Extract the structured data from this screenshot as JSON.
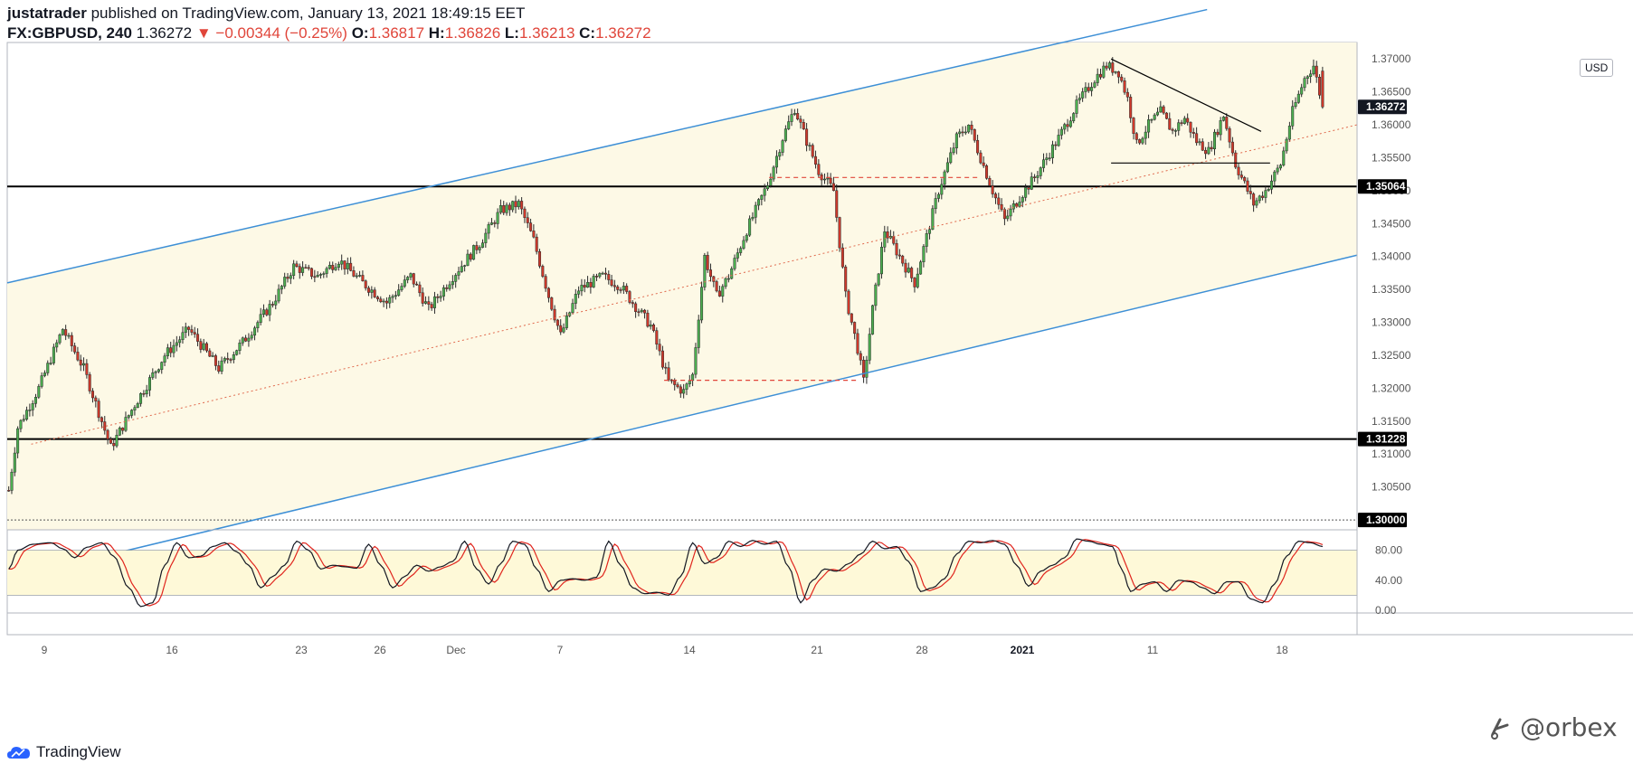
{
  "header": {
    "author": "justatrader",
    "published_text": " published on TradingView.com, January 13, 2021 18:49:15 EET",
    "symbol": "FX:GBPUSD, 240",
    "last": "1.36272",
    "change": "▼ −0.00344 (−0.25%)",
    "o_label": "O:",
    "o_value": "1.36817",
    "h_label": "H:",
    "h_value": "1.36826",
    "l_label": "L:",
    "l_value": "1.36213",
    "c_label": "C:",
    "c_value": "1.36272"
  },
  "currency": "USD",
  "footer": {
    "brand": "TradingView",
    "watermark": "@orbex"
  },
  "colors": {
    "bull": "#4caf50",
    "bear": "#d0392b",
    "channel": "#3d8fd6",
    "channel_fill": "#fdf9e6",
    "stoch_band": "#fef9d8",
    "stoch_k": "#131722",
    "stoch_d": "#e0251d"
  },
  "chart_data": {
    "type": "candlestick",
    "x_ticks": [
      "9",
      "16",
      "23",
      "26",
      "Dec",
      "7",
      "14",
      "21",
      "28",
      "2021",
      "11",
      "18"
    ],
    "y_ticks": [
      "1.37000",
      "1.36500",
      "1.36000",
      "1.35500",
      "1.35000",
      "1.34500",
      "1.34000",
      "1.33500",
      "1.33000",
      "1.32500",
      "1.32000",
      "1.31500",
      "1.31000",
      "1.30500"
    ],
    "ylim": [
      1.2985,
      1.3725
    ],
    "price_labels": [
      {
        "text": "1.36272",
        "value": 1.36272
      },
      {
        "text": "1.35064",
        "value": 1.35064
      },
      {
        "text": "1.31228",
        "value": 1.31228
      },
      {
        "text": "1.30000",
        "value": 1.3
      }
    ],
    "horizontal_levels": [
      1.35064,
      1.31228,
      1.3
    ],
    "path_anchors": [
      [
        0,
        1.3045
      ],
      [
        3,
        1.314
      ],
      [
        10,
        1.32
      ],
      [
        18,
        1.329
      ],
      [
        25,
        1.323
      ],
      [
        34,
        1.311
      ],
      [
        42,
        1.3175
      ],
      [
        52,
        1.325
      ],
      [
        60,
        1.329
      ],
      [
        70,
        1.323
      ],
      [
        78,
        1.327
      ],
      [
        88,
        1.333
      ],
      [
        95,
        1.3385
      ],
      [
        103,
        1.337
      ],
      [
        110,
        1.3395
      ],
      [
        118,
        1.336
      ],
      [
        126,
        1.333
      ],
      [
        134,
        1.337
      ],
      [
        140,
        1.332
      ],
      [
        148,
        1.337
      ],
      [
        157,
        1.342
      ],
      [
        164,
        1.347
      ],
      [
        170,
        1.348
      ],
      [
        175,
        1.3425
      ],
      [
        180,
        1.334
      ],
      [
        184,
        1.328
      ],
      [
        190,
        1.335
      ],
      [
        198,
        1.337
      ],
      [
        204,
        1.3355
      ],
      [
        208,
        1.333
      ],
      [
        214,
        1.3295
      ],
      [
        220,
        1.321
      ],
      [
        225,
        1.3195
      ],
      [
        228,
        1.322
      ],
      [
        232,
        1.34
      ],
      [
        236,
        1.334
      ],
      [
        240,
        1.337
      ],
      [
        246,
        1.344
      ],
      [
        253,
        1.351
      ],
      [
        258,
        1.358
      ],
      [
        262,
        1.3625
      ],
      [
        266,
        1.3575
      ],
      [
        270,
        1.353
      ],
      [
        275,
        1.35
      ],
      [
        279,
        1.334
      ],
      [
        283,
        1.326
      ],
      [
        285,
        1.321
      ],
      [
        288,
        1.332
      ],
      [
        292,
        1.344
      ],
      [
        297,
        1.34
      ],
      [
        302,
        1.336
      ],
      [
        306,
        1.343
      ],
      [
        310,
        1.35
      ],
      [
        316,
        1.358
      ],
      [
        320,
        1.36
      ],
      [
        324,
        1.355
      ],
      [
        328,
        1.35
      ],
      [
        332,
        1.3455
      ],
      [
        337,
        1.349
      ],
      [
        342,
        1.352
      ],
      [
        350,
        1.358
      ],
      [
        356,
        1.363
      ],
      [
        362,
        1.367
      ],
      [
        366,
        1.369
      ],
      [
        370,
        1.368
      ],
      [
        373,
        1.364
      ],
      [
        376,
        1.357
      ],
      [
        380,
        1.36
      ],
      [
        384,
        1.362
      ],
      [
        388,
        1.359
      ],
      [
        392,
        1.361
      ],
      [
        396,
        1.3575
      ],
      [
        400,
        1.356
      ],
      [
        405,
        1.3615
      ],
      [
        409,
        1.354
      ],
      [
        412,
        1.351
      ],
      [
        415,
        1.348
      ],
      [
        419,
        1.35
      ],
      [
        424,
        1.354
      ],
      [
        428,
        1.362
      ],
      [
        432,
        1.367
      ],
      [
        435,
        1.369
      ],
      [
        438,
        1.3628
      ]
    ],
    "channel_upper": [
      [
        0,
        1.336
      ],
      [
        400,
        1.3775
      ]
    ],
    "channel_lower": [
      [
        0,
        1.291
      ],
      [
        450,
        1.3402
      ]
    ],
    "channel_mid": [
      [
        8,
        1.3115
      ],
      [
        450,
        1.36
      ]
    ],
    "triangle_top": [
      [
        368,
        1.37
      ],
      [
        418,
        1.359
      ]
    ],
    "triangle_base": [
      [
        368,
        1.3542
      ],
      [
        421,
        1.3542
      ]
    ],
    "dashed_levels": [
      {
        "value": 1.352,
        "from": 254,
        "to": 324
      },
      {
        "value": 1.3212,
        "from": 219,
        "to": 283
      }
    ],
    "stochastic": {
      "levels": [
        "80.00",
        "40.00",
        "0.00"
      ],
      "band": [
        20,
        80
      ],
      "k_anchors": [
        [
          0,
          55
        ],
        [
          3,
          80
        ],
        [
          8,
          88
        ],
        [
          14,
          90
        ],
        [
          18,
          82
        ],
        [
          22,
          70
        ],
        [
          26,
          84
        ],
        [
          31,
          90
        ],
        [
          35,
          72
        ],
        [
          40,
          30
        ],
        [
          44,
          5
        ],
        [
          48,
          10
        ],
        [
          52,
          60
        ],
        [
          56,
          90
        ],
        [
          60,
          70
        ],
        [
          64,
          72
        ],
        [
          68,
          85
        ],
        [
          72,
          90
        ],
        [
          76,
          78
        ],
        [
          80,
          60
        ],
        [
          84,
          30
        ],
        [
          88,
          45
        ],
        [
          92,
          60
        ],
        [
          96,
          92
        ],
        [
          100,
          80
        ],
        [
          104,
          55
        ],
        [
          108,
          60
        ],
        [
          112,
          58
        ],
        [
          116,
          56
        ],
        [
          120,
          88
        ],
        [
          124,
          60
        ],
        [
          128,
          30
        ],
        [
          132,
          45
        ],
        [
          136,
          60
        ],
        [
          140,
          52
        ],
        [
          144,
          58
        ],
        [
          148,
          65
        ],
        [
          152,
          92
        ],
        [
          156,
          55
        ],
        [
          160,
          35
        ],
        [
          164,
          62
        ],
        [
          168,
          92
        ],
        [
          172,
          88
        ],
        [
          176,
          55
        ],
        [
          180,
          25
        ],
        [
          184,
          40
        ],
        [
          188,
          42
        ],
        [
          192,
          40
        ],
        [
          196,
          44
        ],
        [
          200,
          92
        ],
        [
          204,
          60
        ],
        [
          208,
          30
        ],
        [
          212,
          22
        ],
        [
          216,
          24
        ],
        [
          220,
          20
        ],
        [
          224,
          45
        ],
        [
          228,
          90
        ],
        [
          232,
          62
        ],
        [
          236,
          70
        ],
        [
          240,
          92
        ],
        [
          244,
          85
        ],
        [
          248,
          93
        ],
        [
          252,
          88
        ],
        [
          256,
          92
        ],
        [
          260,
          58
        ],
        [
          264,
          10
        ],
        [
          268,
          40
        ],
        [
          272,
          55
        ],
        [
          276,
          52
        ],
        [
          280,
          62
        ],
        [
          284,
          75
        ],
        [
          288,
          92
        ],
        [
          292,
          82
        ],
        [
          296,
          85
        ],
        [
          300,
          65
        ],
        [
          304,
          25
        ],
        [
          308,
          30
        ],
        [
          312,
          42
        ],
        [
          316,
          75
        ],
        [
          320,
          92
        ],
        [
          324,
          90
        ],
        [
          328,
          93
        ],
        [
          332,
          88
        ],
        [
          336,
          60
        ],
        [
          340,
          32
        ],
        [
          344,
          52
        ],
        [
          348,
          60
        ],
        [
          352,
          70
        ],
        [
          356,
          95
        ],
        [
          360,
          92
        ],
        [
          364,
          88
        ],
        [
          368,
          85
        ],
        [
          371,
          55
        ],
        [
          374,
          25
        ],
        [
          378,
          35
        ],
        [
          382,
          38
        ],
        [
          386,
          25
        ],
        [
          390,
          40
        ],
        [
          394,
          38
        ],
        [
          398,
          30
        ],
        [
          402,
          22
        ],
        [
          406,
          38
        ],
        [
          410,
          38
        ],
        [
          414,
          15
        ],
        [
          418,
          10
        ],
        [
          422,
          35
        ],
        [
          426,
          72
        ],
        [
          430,
          92
        ],
        [
          434,
          90
        ],
        [
          438,
          85
        ]
      ]
    }
  }
}
